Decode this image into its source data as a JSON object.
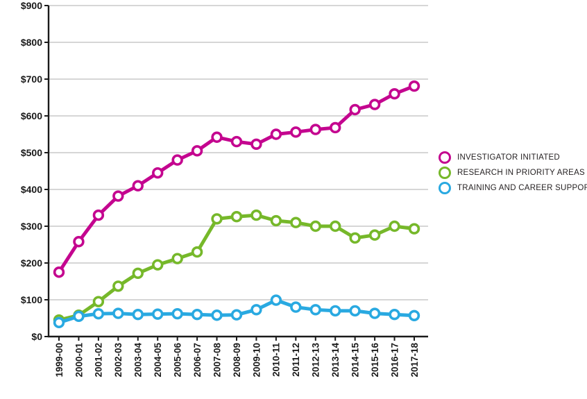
{
  "chart_data": {
    "type": "line",
    "title": "",
    "currency_prefix": "$",
    "categories": [
      "1999-00",
      "2000-01",
      "2001-02",
      "2002-03",
      "2003-04",
      "2004-05",
      "2005-06",
      "2006-07",
      "2007-08",
      "2008-09",
      "2009-10",
      "2010-11",
      "2011-12",
      "2012-13",
      "2013-14",
      "2014-15",
      "2015-16",
      "2016-17",
      "2017-18"
    ],
    "series": [
      {
        "name": "INVESTIGATOR INITIATED",
        "color": "#c4058f",
        "values": [
          175,
          258,
          330,
          382,
          410,
          445,
          480,
          505,
          542,
          530,
          523,
          550,
          556,
          563,
          568,
          617,
          631,
          660,
          681
        ]
      },
      {
        "name": "RESEARCH IN PRIORITY AREAS",
        "color": "#76b82a",
        "values": [
          45,
          58,
          95,
          137,
          172,
          195,
          212,
          230,
          320,
          326,
          330,
          315,
          310,
          300,
          300,
          268,
          276,
          300,
          293
        ]
      },
      {
        "name": "TRAINING AND CAREER SUPPORT",
        "color": "#29a9e1",
        "values": [
          38,
          55,
          62,
          63,
          60,
          61,
          62,
          60,
          58,
          59,
          73,
          99,
          80,
          73,
          70,
          70,
          63,
          60,
          57
        ]
      }
    ],
    "y_ticks": [
      "$0",
      "$100",
      "$200",
      "$300",
      "$400",
      "$500",
      "$600",
      "$700",
      "$800",
      "$900"
    ],
    "ylim": [
      0,
      900
    ],
    "grid": true,
    "legend_position": "right",
    "marker": "open-circle"
  },
  "legend": {
    "items": [
      {
        "label": "INVESTIGATOR INITIATED",
        "color": "#c4058f"
      },
      {
        "label": "RESEARCH IN PRIORITY AREAS",
        "color": "#76b82a"
      },
      {
        "label": "TRAINING AND CAREER SUPPORT",
        "color": "#29a9e1"
      }
    ]
  },
  "colors": {
    "grid": "#c9c9c9",
    "axis": "#1a1a1a",
    "text": "#231f20",
    "background": "#ffffff"
  }
}
